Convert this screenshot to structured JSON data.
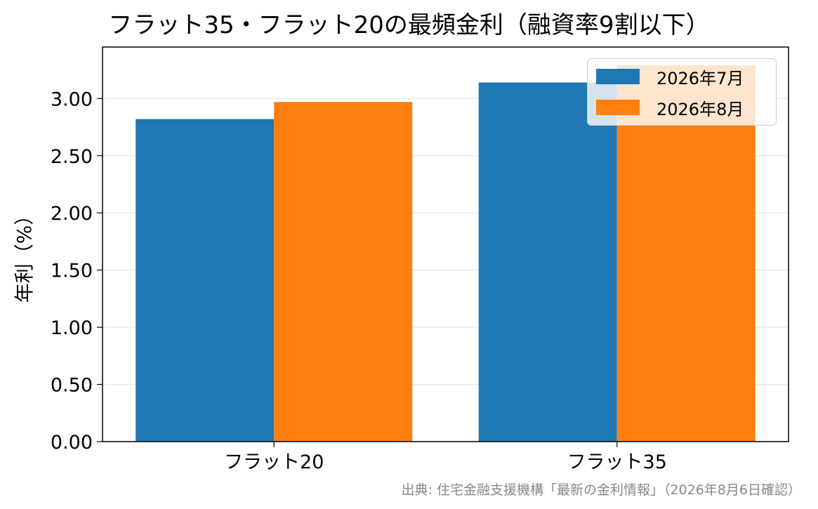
{
  "chart_data": {
    "type": "bar",
    "title": "フラット35・フラット20の最頻金利（融資率9割以下）",
    "ylabel": "年利（%）",
    "xlabel": "",
    "categories": [
      "フラット20",
      "フラット35"
    ],
    "series": [
      {
        "name": "2026年7月",
        "values": [
          2.82,
          3.14
        ],
        "color": "#1f77b4"
      },
      {
        "name": "2026年8月",
        "values": [
          2.97,
          3.29
        ],
        "color": "#ff7f0e"
      }
    ],
    "ylim": [
      0,
      3.45
    ],
    "yticks": [
      "0.00",
      "0.50",
      "1.00",
      "1.50",
      "2.00",
      "2.50",
      "3.00"
    ],
    "grid": true,
    "legend_position": "top-right",
    "source": "出典: 住宅金融支援機構「最新の金利情報」（2026年8月6日確認）"
  }
}
